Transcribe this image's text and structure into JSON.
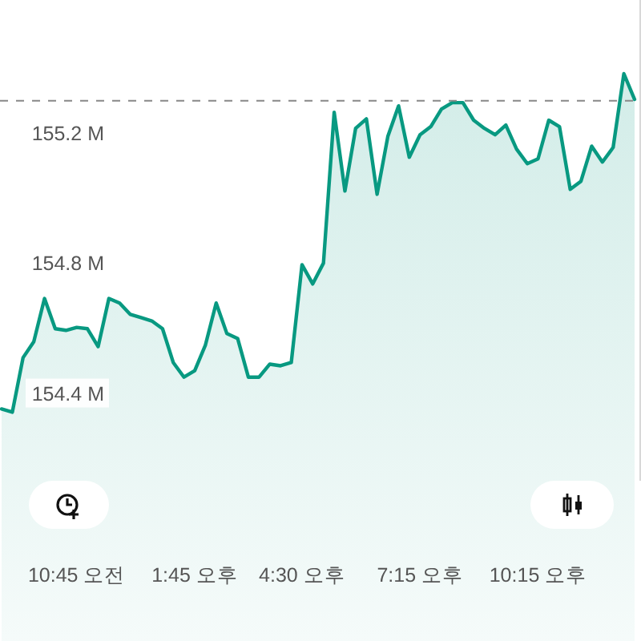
{
  "chart_data": {
    "type": "area",
    "color": "#089981",
    "categories": [
      null,
      null,
      null,
      null,
      null,
      null,
      null,
      "10:45 오전",
      null,
      null,
      null,
      null,
      null,
      null,
      null,
      null,
      null,
      null,
      "1:45 오후",
      null,
      null,
      null,
      null,
      null,
      null,
      null,
      null,
      null,
      "4:30 오후",
      null,
      null,
      null,
      null,
      null,
      null,
      null,
      null,
      null,
      null,
      "7:15 오후",
      null,
      null,
      null,
      null,
      null,
      null,
      null,
      null,
      null,
      null,
      "10:15 오후",
      null,
      null,
      null,
      null,
      null,
      null,
      null,
      null,
      null
    ],
    "values": [
      154.351,
      154.341,
      154.509,
      154.558,
      154.691,
      154.598,
      154.593,
      154.602,
      154.598,
      154.543,
      154.691,
      154.677,
      154.642,
      154.632,
      154.622,
      154.598,
      154.494,
      154.449,
      154.469,
      154.548,
      154.677,
      154.583,
      154.568,
      154.449,
      154.449,
      154.489,
      154.484,
      154.494,
      154.795,
      154.736,
      154.8,
      155.264,
      155.022,
      155.215,
      155.244,
      155.012,
      155.19,
      155.284,
      155.126,
      155.195,
      155.22,
      155.274,
      155.294,
      155.294,
      155.24,
      155.215,
      155.195,
      155.225,
      155.151,
      155.106,
      155.121,
      155.24,
      155.22,
      155.027,
      155.052,
      155.16,
      155.111,
      155.156,
      155.383,
      155.304
    ],
    "ylim": [
      154.13,
      155.61
    ],
    "yticks": [
      {
        "value": 154.4,
        "label": "154.4 M"
      },
      {
        "value": 154.8,
        "label": "154.8 M"
      },
      {
        "value": 155.2,
        "label": "155.2 M"
      }
    ],
    "ref_lines": [
      {
        "axis": "y",
        "value": 155.3,
        "color": "#888888",
        "line_style": "dashed"
      }
    ]
  }
}
